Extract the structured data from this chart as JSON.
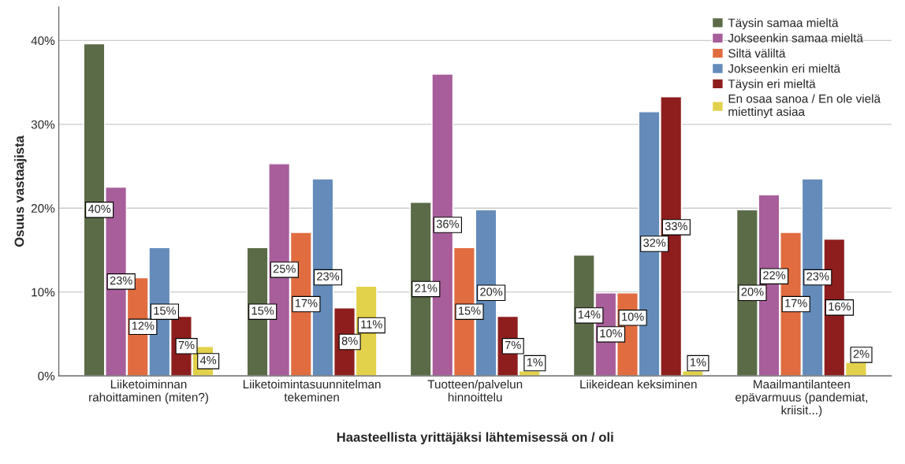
{
  "chart_data": {
    "type": "bar",
    "xlabel": "Haasteellista yrittäjäksi lähtemisessä on / oli",
    "ylabel": "Osuus vastaajista",
    "categories": [
      "Liiketoiminnan\nrahoittaminen (miten?)",
      "Liiketoimintasuunnitelman\ntekeminen",
      "Tuotteen/palvelun\nhinnoittelu",
      "Liikeidean keksiminen",
      "Maailmantilanteen\nepävarmuus (pandemiat,\nkriisit...)"
    ],
    "series": [
      {
        "name": "Täysin samaa mieltä",
        "color": "#5b6b47",
        "values": [
          39.6,
          15.3,
          20.7,
          14.4,
          19.8
        ],
        "value_labels": [
          "40%",
          "15%",
          "21%",
          "14%",
          "20%"
        ]
      },
      {
        "name": "Jokseenkin samaa mieltä",
        "color": "#a85e9a",
        "values": [
          22.5,
          25.3,
          36.0,
          9.9,
          21.6
        ],
        "value_labels": [
          "23%",
          "25%",
          "36%",
          "10%",
          "22%"
        ]
      },
      {
        "name": "Siltä väliltä",
        "color": "#e06c40",
        "values": [
          11.7,
          17.1,
          15.3,
          9.9,
          17.1
        ],
        "value_labels": [
          "12%",
          "17%",
          "15%",
          "10%",
          "17%"
        ]
      },
      {
        "name": "Jokseenkin eri mieltä",
        "color": "#648bba",
        "values": [
          15.3,
          23.5,
          19.8,
          31.5,
          23.5
        ],
        "value_labels": [
          "15%",
          "23%",
          "20%",
          "32%",
          "23%"
        ]
      },
      {
        "name": "Täysin eri mieltä",
        "color": "#8e1e1e",
        "values": [
          7.1,
          8.1,
          7.1,
          33.3,
          16.3
        ],
        "value_labels": [
          "7%",
          "8%",
          "7%",
          "33%",
          "16%"
        ]
      },
      {
        "name": "En osaa sanoa / En ole vielä\nmiettinyt asiaa",
        "color": "#e2d14a",
        "values": [
          3.5,
          10.7,
          0.6,
          0.6,
          1.6
        ],
        "value_labels": [
          "4%",
          "11%",
          "1%",
          "1%",
          "2%"
        ]
      }
    ],
    "ylim": [
      0,
      44
    ],
    "yticks": [
      {
        "value": 0,
        "label": "0%"
      },
      {
        "value": 10,
        "label": "10%"
      },
      {
        "value": 20,
        "label": "20%"
      },
      {
        "value": 30,
        "label": "30%"
      },
      {
        "value": 40,
        "label": "40%"
      }
    ],
    "grid": "y",
    "legend": "top right"
  }
}
